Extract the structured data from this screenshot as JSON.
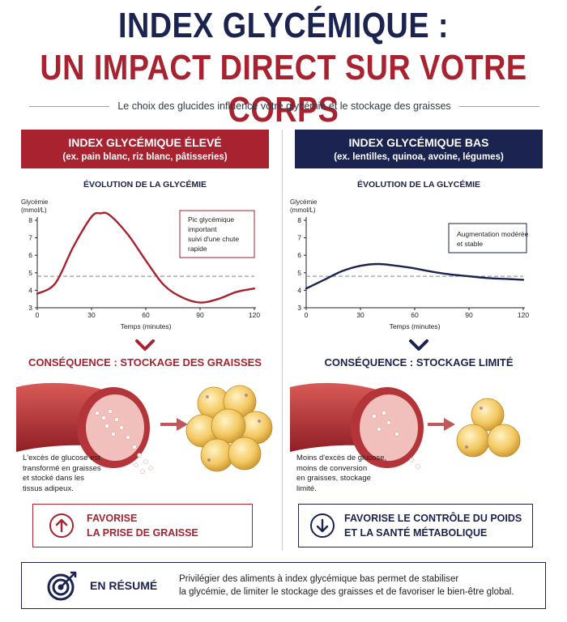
{
  "header": {
    "title_line1": "INDEX GLYCÉMIQUE :",
    "title_line2": "UN IMPACT DIRECT SUR VOTRE CORPS",
    "subtitle": "Le choix des glucides influence votre glycémie et le stockage des graisses"
  },
  "left": {
    "banner_title": "INDEX GLYCÉMIQUE ÉLEVÉ",
    "banner_sub": "(ex. pain blanc, riz blanc, pâtisseries)",
    "chart_title": "ÉVOLUTION DE LA GLYCÉMIE",
    "annotation": [
      "Pic glycémique",
      "important",
      "suivi d'une chute",
      "rapide"
    ],
    "consequence": "CONSÉQUENCE : STOCKAGE DES GRAISSES",
    "note": [
      "L'excès de glucose est",
      "transformé en graisses",
      "et stocké dans les",
      "tissus adipeux."
    ],
    "box_line1": "FAVORISE",
    "box_line2": "LA PRISE DE GRAISSE"
  },
  "right": {
    "banner_title": "INDEX GLYCÉMIQUE BAS",
    "banner_sub": "(ex. lentilles, quinoa, avoine, légumes)",
    "chart_title": "ÉVOLUTION DE LA GLYCÉMIE",
    "annotation": [
      "Augmentation modérée",
      "et stable"
    ],
    "consequence": "CONSÉQUENCE : STOCKAGE LIMITÉ",
    "note": [
      "Moins d'excès de glucose,",
      "moins de conversion",
      "en graisses, stockage",
      "limité."
    ],
    "box_line1": "FAVORISE LE CONTRÔLE DU POIDS",
    "box_line2": "ET LA SANTÉ MÉTABOLIQUE"
  },
  "summary": {
    "title": "EN RÉSUMÉ",
    "line1": "Privilégier des aliments à index glycémique bas permet de stabiliser",
    "line2": "la glycémie, de limiter le stockage des graisses et de favoriser le bien-être global."
  },
  "icons": [
    "arrow-up-icon",
    "arrow-down-icon",
    "target-icon",
    "chevron-down-icon"
  ],
  "colors": {
    "red": "#a8222f",
    "navy": "#1b2350",
    "fat": "#f0c765"
  },
  "chart_data": [
    {
      "type": "line",
      "title": "ÉVOLUTION DE LA GLYCÉMIE",
      "xlabel": "Temps (minutes)",
      "ylabel": "Glycémie (mmol/L)",
      "xlim": [
        0,
        120
      ],
      "ylim": [
        3,
        8
      ],
      "xticks": [
        0,
        30,
        60,
        90,
        120
      ],
      "yticks": [
        3,
        4,
        5,
        6,
        7,
        8
      ],
      "baseline": 4.8,
      "series": [
        {
          "x": [
            0,
            10,
            20,
            30,
            35,
            40,
            50,
            60,
            70,
            80,
            90,
            100,
            110,
            120
          ],
          "y": [
            3.8,
            4.4,
            6.5,
            8.2,
            8.4,
            8.3,
            7.2,
            5.7,
            4.3,
            3.6,
            3.3,
            3.5,
            3.9,
            4.1
          ]
        }
      ],
      "color": "#a8222f"
    },
    {
      "type": "line",
      "title": "ÉVOLUTION DE LA GLYCÉMIE",
      "xlabel": "Temps (minutes)",
      "ylabel": "Glycémie (mmol/L)",
      "xlim": [
        0,
        120
      ],
      "ylim": [
        3,
        8
      ],
      "xticks": [
        0,
        30,
        60,
        90,
        120
      ],
      "yticks": [
        3,
        4,
        5,
        6,
        7,
        8
      ],
      "baseline": 4.8,
      "series": [
        {
          "x": [
            0,
            10,
            20,
            30,
            40,
            50,
            60,
            70,
            80,
            90,
            100,
            110,
            120
          ],
          "y": [
            4.1,
            4.6,
            5.1,
            5.4,
            5.5,
            5.4,
            5.25,
            5.05,
            4.9,
            4.8,
            4.7,
            4.65,
            4.6
          ]
        }
      ],
      "color": "#1b2350"
    }
  ]
}
